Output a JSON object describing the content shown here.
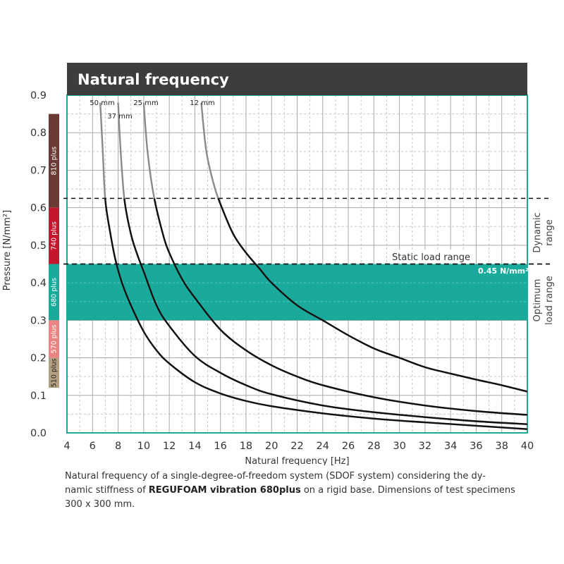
{
  "chart_data": {
    "type": "line",
    "title": "Natural frequency",
    "xlabel": "Natural frequency [Hz]",
    "ylabel": "Pressure [N/mm²]",
    "xlim": [
      4,
      40
    ],
    "ylim": [
      0,
      0.9
    ],
    "x_ticks": [
      "4",
      "6",
      "8",
      "10",
      "12",
      "14",
      "16",
      "18",
      "20",
      "22",
      "24",
      "26",
      "28",
      "30",
      "32",
      "34",
      "36",
      "38",
      "40"
    ],
    "y_ticks": [
      "0.0",
      "0.1",
      "0.2",
      "0.3",
      "0.4",
      "0.5",
      "0.6",
      "0.7",
      "0.8",
      "0.9"
    ],
    "grid": true,
    "series": [
      {
        "name": "50 mm",
        "x": [
          6.6,
          6.8,
          7.0,
          7.4,
          7.8,
          8.3,
          9.0,
          10.0,
          11.0,
          12.0,
          14.0,
          16.0,
          18.0,
          20.0,
          24.0,
          28.0,
          32.0,
          36.0,
          40.0
        ],
        "y": [
          0.88,
          0.75,
          0.62,
          0.53,
          0.46,
          0.4,
          0.34,
          0.27,
          0.22,
          0.185,
          0.135,
          0.105,
          0.085,
          0.071,
          0.052,
          0.038,
          0.028,
          0.019,
          0.01
        ]
      },
      {
        "name": "37 mm",
        "x": [
          8.0,
          8.2,
          8.5,
          9.0,
          9.5,
          10.0,
          11.0,
          12.0,
          14.0,
          16.0,
          18.0,
          20.0,
          24.0,
          28.0,
          32.0,
          36.0,
          40.0
        ],
        "y": [
          0.88,
          0.75,
          0.62,
          0.53,
          0.475,
          0.43,
          0.34,
          0.285,
          0.205,
          0.16,
          0.127,
          0.103,
          0.073,
          0.055,
          0.042,
          0.031,
          0.023
        ]
      },
      {
        "name": "25 mm",
        "x": [
          10.0,
          10.3,
          10.8,
          11.5,
          12.0,
          13.0,
          14.0,
          16.0,
          18.0,
          20.0,
          22.0,
          24.0,
          28.0,
          32.0,
          36.0,
          40.0
        ],
        "y": [
          0.88,
          0.75,
          0.63,
          0.53,
          0.48,
          0.41,
          0.36,
          0.275,
          0.22,
          0.18,
          0.15,
          0.127,
          0.095,
          0.073,
          0.058,
          0.048
        ]
      },
      {
        "name": "12 mm",
        "x": [
          14.5,
          14.9,
          15.5,
          16.0,
          17.0,
          18.0,
          19.0,
          20.0,
          22.0,
          24.0,
          26.0,
          28.0,
          30.0,
          32.0,
          34.0,
          36.0,
          38.0,
          40.0
        ],
        "y": [
          0.88,
          0.75,
          0.66,
          0.61,
          0.53,
          0.48,
          0.44,
          0.4,
          0.34,
          0.3,
          0.26,
          0.225,
          0.2,
          0.175,
          0.158,
          0.142,
          0.127,
          0.11
        ]
      }
    ],
    "material_bands": [
      {
        "label": "810 plus",
        "from": 0.6,
        "to": 0.85,
        "color": "#6b3a34"
      },
      {
        "label": "740 plus",
        "from": 0.45,
        "to": 0.6,
        "color": "#c4172e"
      },
      {
        "label": "680 plus",
        "from": 0.3,
        "to": 0.45,
        "color": "#1aaa9c"
      },
      {
        "label": "570 plus",
        "from": 0.2,
        "to": 0.3,
        "color": "#e88583"
      },
      {
        "label": "510 plus",
        "from": 0.12,
        "to": 0.2,
        "color": "#b49f80"
      }
    ],
    "optimum_load_range": {
      "from": 0.3,
      "to": 0.45,
      "color": "#1aaa9c",
      "label": "Optimum load range"
    },
    "static_load_limit": {
      "value": 0.45,
      "label": "Static load range",
      "value_label": "0.45 N/mm²"
    },
    "dynamic_load_limit": {
      "value": 0.625,
      "label": "Dynamic range"
    },
    "colors": {
      "title_bar": "#3d3d3d",
      "frame": "#1aaa9c",
      "curves": "#111111",
      "curve_tails": "#8a8a8a",
      "grid": "#aaaaaa"
    }
  },
  "caption": {
    "line1": "Natural frequency of a single-degree-of-freedom system (SDOF system) considering the dy-",
    "line2_prefix": "namic stiffness of ",
    "line2_product": "REGUFOAM vibration 680plus",
    "line2_suffix": " on a rigid base. Dimensions of test specimens",
    "line3": "300 x 300 mm."
  }
}
